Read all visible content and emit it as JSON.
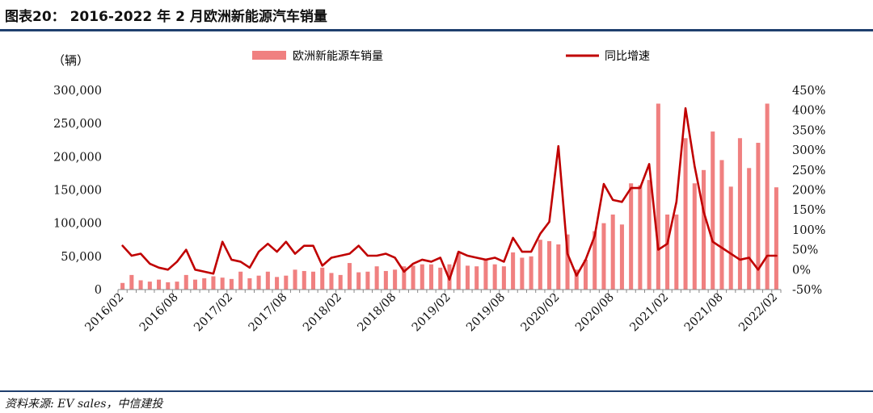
{
  "figure": {
    "title": "图表20： 2016-2022 年 2 月欧洲新能源汽车销量",
    "source": "资料来源: EV sales，中信建投"
  },
  "chart_data": {
    "type": "bar",
    "unit_label": "（辆）",
    "legend_position": "top",
    "colors": {
      "bars": "#f08080",
      "line": "#c00000",
      "axis": "#888888"
    },
    "y_left": {
      "ticks": [
        "0",
        "50,000",
        "100,000",
        "150,000",
        "200,000",
        "250,000",
        "300,000"
      ],
      "ylim": [
        0,
        300000
      ]
    },
    "y_right": {
      "ticks": [
        "-50%",
        "0%",
        "50%",
        "100%",
        "150%",
        "200%",
        "250%",
        "300%",
        "350%",
        "400%",
        "450%"
      ],
      "ylim": [
        -50,
        450
      ]
    },
    "x_tick_labels": [
      "2016/02",
      "2016/08",
      "2017/02",
      "2017/08",
      "2018/02",
      "2018/08",
      "2019/02",
      "2019/08",
      "2020/02",
      "2020/08",
      "2021/02",
      "2021/08",
      "2022/02"
    ],
    "months": [
      "2016/02",
      "2016/03",
      "2016/04",
      "2016/05",
      "2016/06",
      "2016/07",
      "2016/08",
      "2016/09",
      "2016/10",
      "2016/11",
      "2016/12",
      "2017/01",
      "2017/02",
      "2017/03",
      "2017/04",
      "2017/05",
      "2017/06",
      "2017/07",
      "2017/08",
      "2017/09",
      "2017/10",
      "2017/11",
      "2017/12",
      "2018/01",
      "2018/02",
      "2018/03",
      "2018/04",
      "2018/05",
      "2018/06",
      "2018/07",
      "2018/08",
      "2018/09",
      "2018/10",
      "2018/11",
      "2018/12",
      "2019/01",
      "2019/02",
      "2019/03",
      "2019/04",
      "2019/05",
      "2019/06",
      "2019/07",
      "2019/08",
      "2019/09",
      "2019/10",
      "2019/11",
      "2019/12",
      "2020/01",
      "2020/02",
      "2020/03",
      "2020/04",
      "2020/05",
      "2020/06",
      "2020/07",
      "2020/08",
      "2020/09",
      "2020/10",
      "2020/11",
      "2020/12",
      "2021/01",
      "2021/02",
      "2021/03",
      "2021/04",
      "2021/05",
      "2021/06",
      "2021/07",
      "2021/08",
      "2021/09",
      "2021/10",
      "2021/11",
      "2021/12",
      "2022/01",
      "2022/02"
    ],
    "series": [
      {
        "name": "欧洲新能源车销量",
        "kind": "bar",
        "axis": "left",
        "values": [
          10000,
          22000,
          14000,
          12000,
          15000,
          11000,
          12000,
          22000,
          15000,
          17000,
          20000,
          18000,
          16000,
          27000,
          17000,
          21000,
          27000,
          19000,
          21000,
          30000,
          28000,
          27000,
          33000,
          25000,
          22000,
          40000,
          26000,
          27000,
          35000,
          28000,
          30000,
          35000,
          36000,
          38000,
          38000,
          33000,
          38000,
          55000,
          36000,
          35000,
          45000,
          38000,
          35000,
          56000,
          48000,
          50000,
          75000,
          73000,
          68000,
          83000,
          30000,
          45000,
          88000,
          100000,
          113000,
          98000,
          160000,
          157000,
          165000,
          280000,
          113000,
          113000,
          228000,
          160000,
          180000,
          238000,
          195000,
          155000,
          228000,
          183000,
          221000,
          280000,
          154000
        ]
      },
      {
        "name": "同比增速",
        "kind": "line",
        "axis": "right",
        "values": [
          60,
          35,
          40,
          15,
          5,
          0,
          20,
          50,
          0,
          -5,
          -10,
          70,
          25,
          20,
          5,
          45,
          65,
          45,
          70,
          40,
          60,
          60,
          10,
          30,
          35,
          40,
          60,
          35,
          35,
          40,
          30,
          -5,
          15,
          25,
          20,
          30,
          -25,
          45,
          35,
          30,
          25,
          30,
          20,
          80,
          45,
          45,
          90,
          120,
          310,
          40,
          -15,
          25,
          85,
          215,
          175,
          170,
          205,
          205,
          265,
          50,
          65,
          170,
          405,
          260,
          145,
          70,
          55,
          40,
          25,
          30,
          0,
          35,
          35
        ]
      }
    ]
  }
}
